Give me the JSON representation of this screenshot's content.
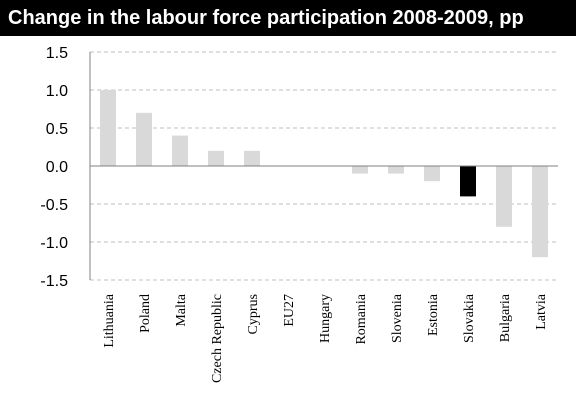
{
  "chart_data": {
    "type": "bar",
    "title": "Change in the labour force participation 2008-2009, pp",
    "categories": [
      "Lithuania",
      "Poland",
      "Malta",
      "Czech Republic",
      "Cyprus",
      "EU27",
      "Hungary",
      "Romania",
      "Slovenia",
      "Estonia",
      "Slovakia",
      "Bulgaria",
      "Latvia"
    ],
    "values": [
      1.0,
      0.7,
      0.4,
      0.2,
      0.2,
      0.0,
      0.0,
      -0.1,
      -0.1,
      -0.2,
      -0.4,
      -0.8,
      -1.2
    ],
    "highlight": "Slovakia",
    "ylim": [
      -1.5,
      1.5
    ],
    "yticks": [
      "1.5",
      "1.0",
      "0.5",
      "0.0",
      "-0.5",
      "-1.0",
      "-1.5"
    ],
    "grid": true,
    "colors": {
      "bar": "#d9d9d9",
      "highlight": "#000000",
      "title_bg": "#000000",
      "title_text": "#ffffff"
    }
  }
}
